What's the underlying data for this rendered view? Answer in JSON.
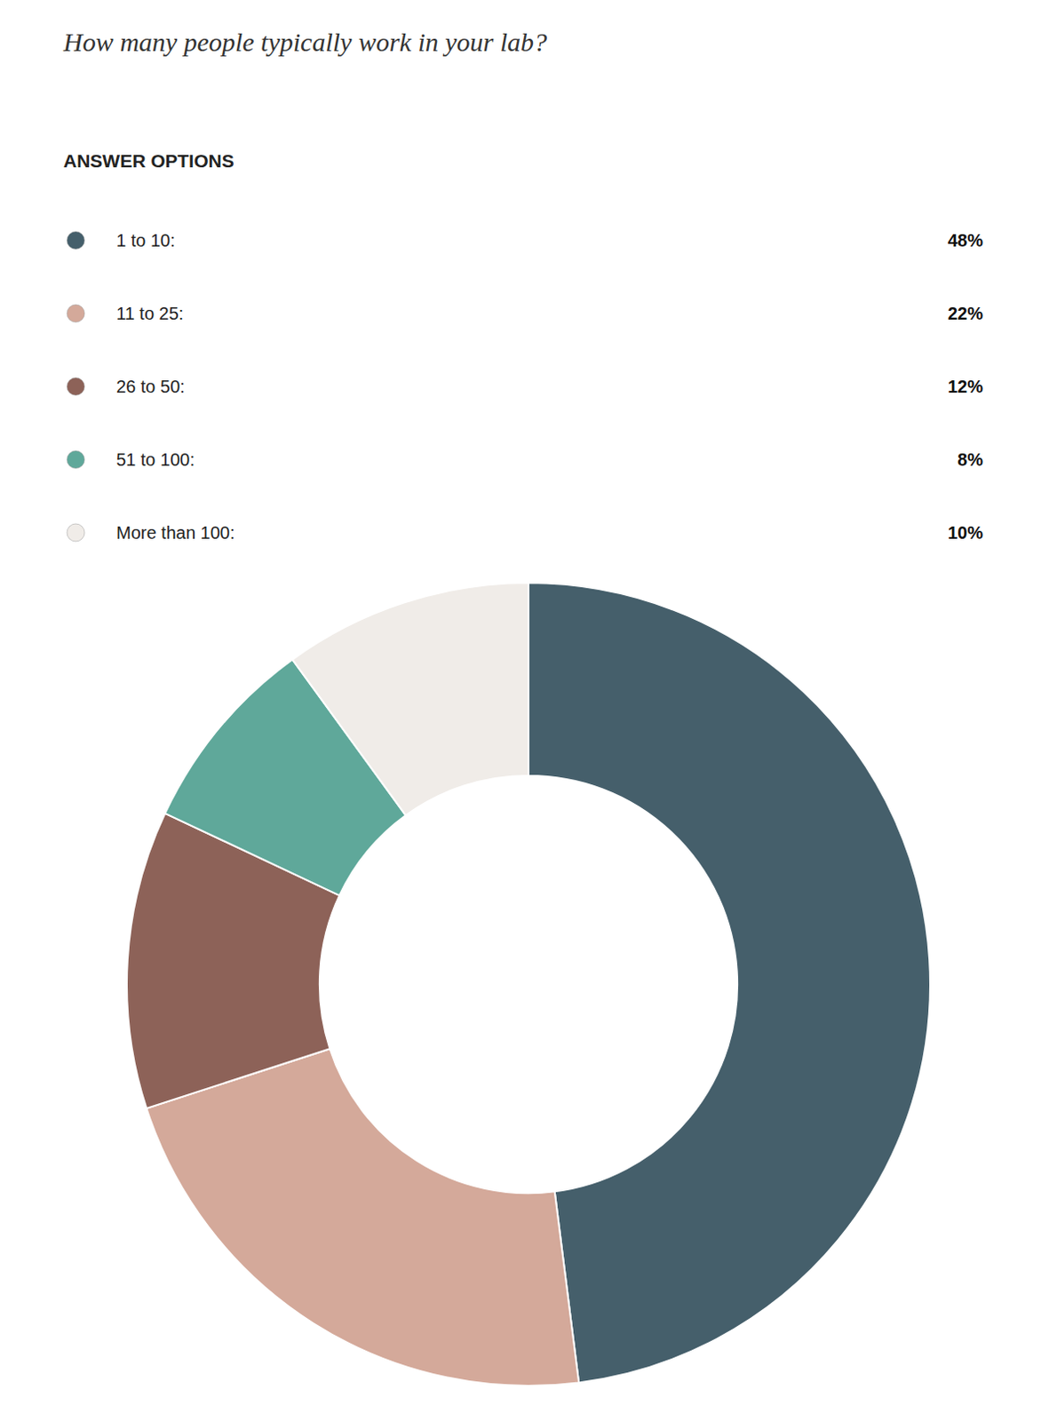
{
  "chart_data": {
    "type": "pie",
    "title": "How many people typically work in your lab?",
    "subtitle": "ANSWER OPTIONS",
    "categories": [
      "1 to 10:",
      "11 to 25:",
      "26 to 50:",
      "51 to 100:",
      "More than 100:"
    ],
    "values": [
      48,
      22,
      12,
      8,
      10
    ],
    "value_labels": [
      "48%",
      "22%",
      "12%",
      "8%",
      "10%"
    ],
    "colors": [
      "#455f6b",
      "#d4a99a",
      "#8d6258",
      "#5fa89a",
      "#f0ece8"
    ],
    "legend": "top"
  }
}
